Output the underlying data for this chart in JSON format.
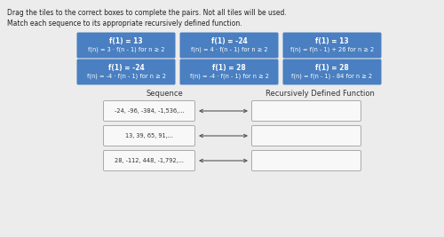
{
  "title_line1": "Drag the tiles to the correct boxes to complete the pairs. Not all tiles will be used.",
  "title_line2": "Match each sequence to its appropriate recursively defined function.",
  "bg_color": "#ececec",
  "tile_bg": "#4a7fc1",
  "tile_text_color": "#ffffff",
  "tiles": [
    [
      "f(1) = 13",
      "f(n) = 3 · f(n - 1) for n ≥ 2"
    ],
    [
      "f(1) = -24",
      "f(n) = 4 · f(n - 1) for n ≥ 2"
    ],
    [
      "f(1) = 13",
      "f(n) = f(n - 1) + 26 for n ≥ 2"
    ],
    [
      "f(1) = -24",
      "f(n) = -4 · f(n - 1) for n ≥ 2"
    ],
    [
      "f(1) = 28",
      "f(n) = -4 · f(n - 1) for n ≥ 2"
    ],
    [
      "f(1) = 28",
      "f(n) = f(n - 1) - 84 for n ≥ 2"
    ]
  ],
  "sequences": [
    "-24, -96, -384, -1,536,...",
    "13, 39, 65, 91,...",
    "28, -112, 448, -1,792,..."
  ],
  "seq_label": "Sequence",
  "func_label": "Recursively Defined Function",
  "box_color": "#f8f8f8",
  "box_border": "#aaaaaa",
  "arrow_color": "#555555"
}
